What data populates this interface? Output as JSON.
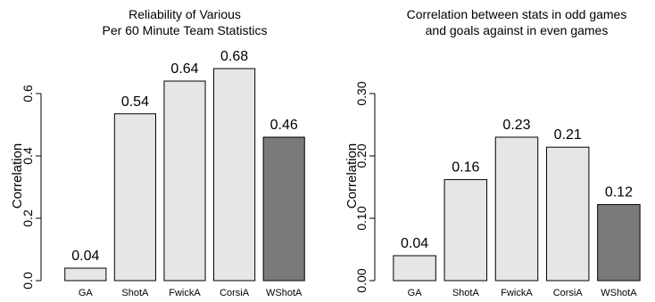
{
  "chart_data": [
    {
      "type": "bar",
      "title": "Reliability of Various\nPer 60 Minute Team Statistics",
      "xlabel": "",
      "ylabel": "Correlation",
      "categories": [
        "GA",
        "ShotA",
        "FwickA",
        "CorsiA",
        "WShotA"
      ],
      "values": [
        0.04,
        0.535,
        0.64,
        0.68,
        0.46
      ],
      "value_labels": [
        "0.04",
        "0.54",
        "0.64",
        "0.68",
        "0.46"
      ],
      "ylim": [
        0,
        0.7
      ],
      "yticks": [
        "0.0",
        "0.2",
        "0.4",
        "0.6"
      ],
      "bar_colors": [
        "#e6e6e6",
        "#e6e6e6",
        "#e6e6e6",
        "#e6e6e6",
        "#7a7a7a"
      ],
      "grid": false,
      "legend": "none"
    },
    {
      "type": "bar",
      "title": "Correlation between stats in odd games\nand goals against in even games",
      "xlabel": "",
      "ylabel": "Correlation",
      "categories": [
        "GA",
        "ShotA",
        "FwickA",
        "CorsiA",
        "WShotA"
      ],
      "values": [
        0.04,
        0.162,
        0.23,
        0.214,
        0.122
      ],
      "value_labels": [
        "0.04",
        "0.16",
        "0.23",
        "0.21",
        "0.12"
      ],
      "ylim": [
        0,
        0.35
      ],
      "yticks": [
        "0.00",
        "0.10",
        "0.20",
        "0.30"
      ],
      "bar_colors": [
        "#e6e6e6",
        "#e6e6e6",
        "#e6e6e6",
        "#e6e6e6",
        "#7a7a7a"
      ],
      "grid": false,
      "legend": "none"
    }
  ]
}
